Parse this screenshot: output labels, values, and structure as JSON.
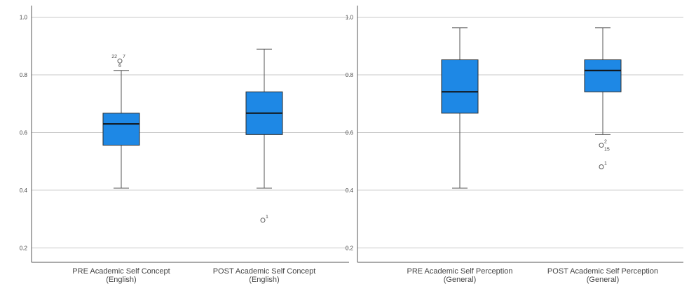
{
  "colors": {
    "box_fill": "#1e88e5",
    "box_stroke": "#2b2b2b",
    "median": "#111111",
    "whisker": "#555555",
    "grid": "#c8c8c8",
    "axis": "#555555",
    "text": "#444444",
    "background": "#ffffff"
  },
  "chart_data": [
    {
      "type": "boxplot",
      "title": "",
      "ylim": [
        0.15,
        1.04
      ],
      "yticks": [
        0.2,
        0.4,
        0.6,
        0.8,
        1.0
      ],
      "ytick_labels": [
        "0.2",
        "0.4",
        "0.6",
        "0.8",
        "1.0"
      ],
      "grid": true,
      "categories": [
        {
          "label_lines": [
            "PRE Academic Self Concept",
            "(English)"
          ],
          "min": 0.407,
          "q1": 0.556,
          "median": 0.63,
          "q3": 0.667,
          "max": 0.815,
          "outliers": [
            {
              "value": 0.848,
              "labels": [
                "22",
                "7",
                "6"
              ]
            }
          ]
        },
        {
          "label_lines": [
            "POST Academic Self Concept",
            "(English)"
          ],
          "min": 0.407,
          "q1": 0.593,
          "median": 0.667,
          "q3": 0.741,
          "max": 0.889,
          "outliers": [
            {
              "value": 0.296,
              "labels": [
                "1"
              ]
            }
          ]
        }
      ]
    },
    {
      "type": "boxplot",
      "title": "",
      "ylim": [
        0.15,
        1.04
      ],
      "yticks": [
        0.2,
        0.4,
        0.6,
        0.8,
        1.0
      ],
      "ytick_labels": [
        "0.2",
        "0.4",
        "0.6",
        "0.8",
        "1.0"
      ],
      "grid": true,
      "categories": [
        {
          "label_lines": [
            "PRE Academic Self Perception",
            "(General)"
          ],
          "min": 0.407,
          "q1": 0.667,
          "median": 0.741,
          "q3": 0.852,
          "max": 0.963,
          "outliers": []
        },
        {
          "label_lines": [
            "POST Academic Self Perception",
            "(General)"
          ],
          "min": 0.593,
          "q1": 0.741,
          "median": 0.815,
          "q3": 0.852,
          "max": 0.963,
          "outliers": [
            {
              "value": 0.556,
              "labels": [
                "2",
                "15"
              ]
            },
            {
              "value": 0.481,
              "labels": [
                "1"
              ]
            }
          ]
        }
      ]
    }
  ]
}
